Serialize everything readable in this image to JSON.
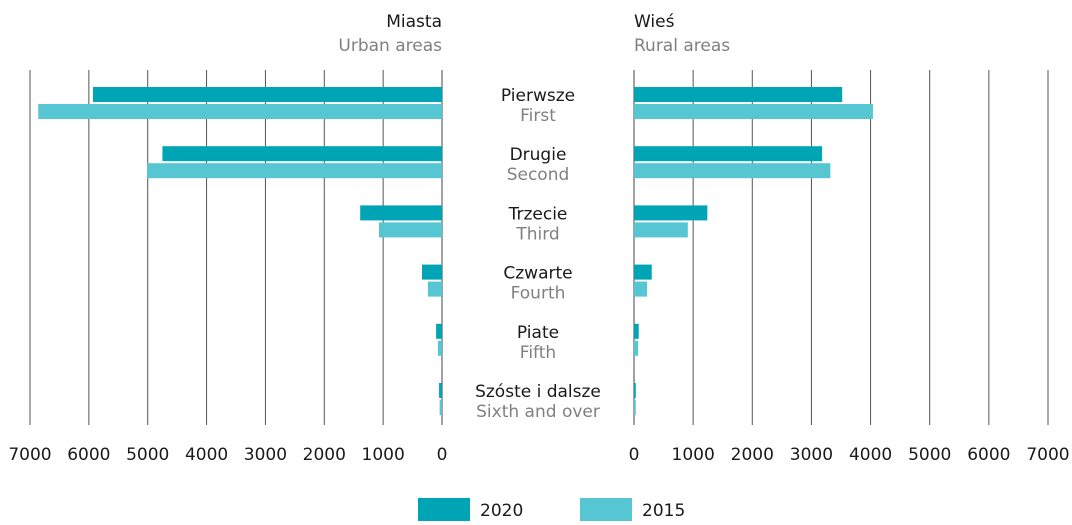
{
  "chart_data": {
    "type": "butterfly",
    "categories": [
      "Pierwsze",
      "Drugie",
      "Trzecie",
      "Czwarte",
      "Piate",
      "Szóste i dalsze"
    ],
    "categories_en": [
      "First",
      "Second",
      "Third",
      "Fourth",
      "Fifth",
      "Sixth and over"
    ],
    "panels": [
      {
        "title": "Miasta",
        "subtitle": "Urban areas"
      },
      {
        "title": "Wieś",
        "subtitle": "Rural areas"
      }
    ],
    "series": [
      {
        "name": "2020",
        "color": "#00a5b5",
        "values": [
          [
            5930,
            4750,
            1390,
            340,
            100,
            50
          ],
          [
            3520,
            3180,
            1240,
            300,
            80,
            30
          ]
        ]
      },
      {
        "name": "2015",
        "color": "#55c6d2",
        "values": [
          [
            6860,
            5010,
            1070,
            240,
            70,
            40
          ],
          [
            4040,
            3320,
            910,
            220,
            70,
            30
          ]
        ]
      }
    ],
    "xlim": [
      0,
      7000
    ],
    "xticks": [
      0,
      1000,
      2000,
      3000,
      4000,
      5000,
      6000,
      7000
    ],
    "grid": true
  }
}
